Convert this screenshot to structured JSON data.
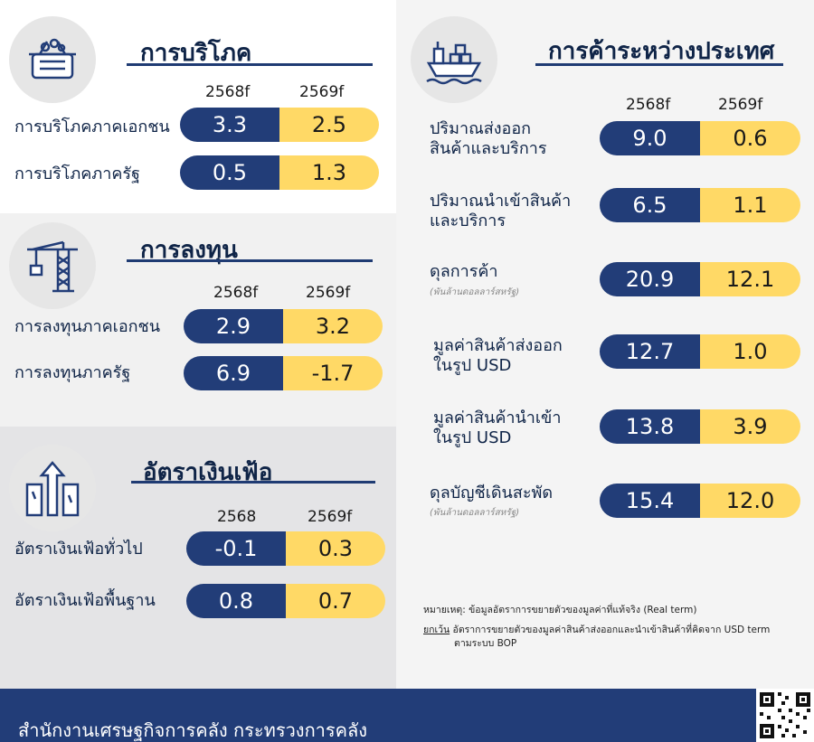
{
  "consumption": {
    "title": "การบริโภค",
    "years": [
      "2568f",
      "2569f"
    ],
    "rows": [
      {
        "label": "การบริโภคภาคเอกชน",
        "v1": "3.3",
        "v2": "2.5"
      },
      {
        "label": "การบริโภคภาครัฐ",
        "v1": "0.5",
        "v2": "1.3"
      }
    ]
  },
  "investment": {
    "title": "การลงทุน",
    "years": [
      "2568f",
      "2569f"
    ],
    "rows": [
      {
        "label": "การลงทุนภาคเอกชน",
        "v1": "2.9",
        "v2": "3.2"
      },
      {
        "label": "การลงทุนภาครัฐ",
        "v1": "6.9",
        "v2": "-1.7"
      }
    ]
  },
  "inflation": {
    "title": "อัตราเงินเฟ้อ",
    "years": [
      "2568",
      "2569f"
    ],
    "rows": [
      {
        "label": "อัตราเงินเฟ้อทั่วไป",
        "v1": "-0.1",
        "v2": "0.3"
      },
      {
        "label": "อัตราเงินเฟ้อพื้นฐาน",
        "v1": "0.8",
        "v2": "0.7"
      }
    ]
  },
  "trade": {
    "title": "การค้าระหว่างประเทศ",
    "years": [
      "2568f",
      "2569f"
    ],
    "rows": [
      {
        "line1": "ปริมาณส่งออก",
        "line2": "สินค้าและบริการ",
        "sub": "",
        "v1": "9.0",
        "v2": "0.6"
      },
      {
        "line1": "ปริมาณนำเข้าสินค้า",
        "line2": "และบริการ",
        "sub": "",
        "v1": "6.5",
        "v2": "1.1"
      },
      {
        "line1": "ดุลการค้า",
        "line2": "",
        "sub": "(พันล้านดอลลาร์สหรัฐ)",
        "v1": "20.9",
        "v2": "12.1"
      },
      {
        "line1": "มูลค่าสินค้าส่งออก",
        "line2": "ในรูป USD",
        "sub": "",
        "v1": "12.7",
        "v2": "1.0"
      },
      {
        "line1": "มูลค่าสินค้านำเข้า",
        "line2": "ในรูป USD",
        "sub": "",
        "v1": "13.8",
        "v2": "3.9"
      },
      {
        "line1": "ดุลบัญชีเดินสะพัด",
        "line2": "",
        "sub": "(พันล้านดอลลาร์สหรัฐ)",
        "v1": "15.4",
        "v2": "12.0"
      }
    ]
  },
  "notes": {
    "n1": "หมายเหตุ: ข้อมูลอัตราการขยายตัวของมูลค่าที่แท้จริง (Real term)",
    "n2_prefix": "ยกเว้น",
    "n2": " อัตราการขยายตัวของมูลค่าสินค้าส่งออกและนำเข้าสินค้าที่คิดจาก USD term",
    "n3": "ตามระบบ BOP"
  },
  "footer": {
    "org": "สำนักงานเศรษฐกิจการคลัง กระทรวงการคลัง"
  },
  "colors": {
    "navy": "#223d78",
    "yellow": "#ffd966",
    "title": "#0f2447"
  },
  "icons": [
    "basket-icon",
    "crane-icon",
    "inflation-arrow-icon",
    "cargo-ship-icon",
    "qr-code-icon"
  ]
}
